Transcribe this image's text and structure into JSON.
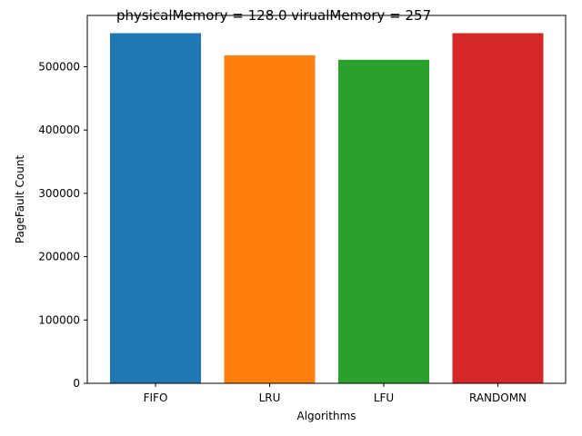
{
  "chart_data": {
    "type": "bar",
    "title": "physicalMemory = 128.0 virualMemory = 257",
    "xlabel": "Algorithms",
    "ylabel": "PageFault Count",
    "categories": [
      "FIFO",
      "LRU",
      "LFU",
      "RANDOMN"
    ],
    "values": [
      553000,
      518000,
      511000,
      553000
    ],
    "colors": [
      "#1f77b4",
      "#ff7f0e",
      "#2ca02c",
      "#d62728"
    ],
    "ylim": [
      0,
      581000
    ],
    "yticks": [
      0,
      100000,
      200000,
      300000,
      400000,
      500000
    ],
    "grid": false,
    "legend": "none"
  }
}
